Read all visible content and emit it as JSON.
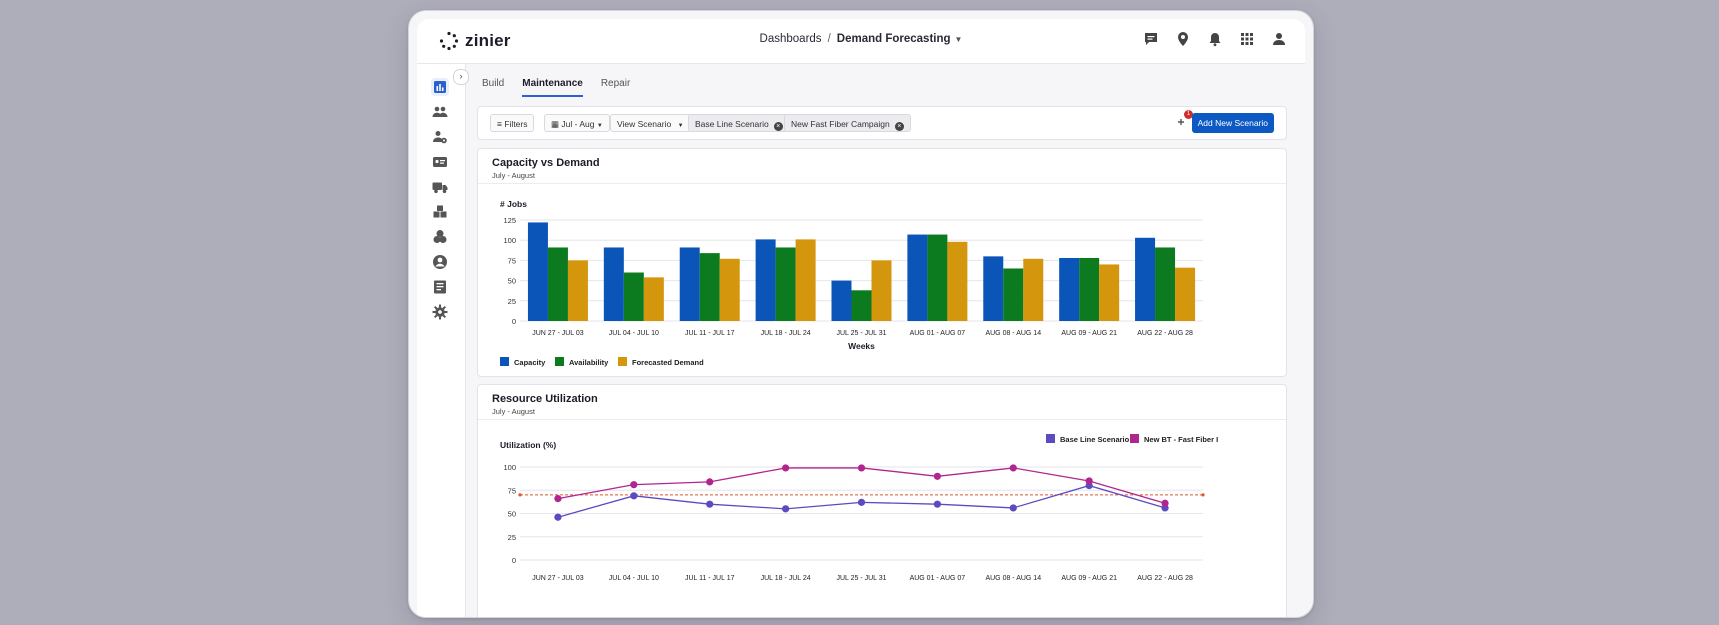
{
  "app": {
    "logo_text": "zinier"
  },
  "breadcrumb": {
    "parent": "Dashboards",
    "separator": "/",
    "current": "Demand Forecasting"
  },
  "tabs": [
    {
      "label": "Build"
    },
    {
      "label": "Maintenance"
    },
    {
      "label": "Repair"
    }
  ],
  "filters": {
    "filters_label": "Filters",
    "date_range": "Jul - Aug",
    "view_scenario": "View Scenario",
    "scenarios": [
      "Base Line Scenario",
      "New Fast Fiber Campaign"
    ],
    "notification_count": "1",
    "add_button": "Add New Scenario"
  },
  "capacity_card": {
    "title": "Capacity vs Demand",
    "subtitle": "July - August"
  },
  "utilization_card": {
    "title": "Resource Utilization",
    "subtitle": "July - August"
  },
  "colors": {
    "capacity": "#0b55b8",
    "availability": "#0c7a1e",
    "forecast": "#d4960c",
    "baseline": "#5a4cc0",
    "newbt": "#b1268e",
    "threshold": "#e0542e"
  },
  "chart_data": [
    {
      "type": "bar",
      "ylabel": "# Jobs",
      "xlabel": "Weeks",
      "ylim": [
        0,
        125
      ],
      "yticks": [
        0,
        25,
        50,
        75,
        100,
        125
      ],
      "categories": [
        "JUN 27 - JUL 03",
        "JUL 04 - JUL 10",
        "JUL 11 - JUL 17",
        "JUL 18 - JUL 24",
        "JUL 25 - JUL 31",
        "AUG 01 - AUG 07",
        "AUG 08 - AUG 14",
        "AUG 09 - AUG 21",
        "AUG 22 - AUG 28"
      ],
      "series": [
        {
          "name": "Capacity",
          "values": [
            122,
            91,
            91,
            101,
            50,
            107,
            80,
            78,
            103
          ]
        },
        {
          "name": "Availability",
          "values": [
            91,
            60,
            84,
            91,
            38,
            107,
            65,
            78,
            91
          ]
        },
        {
          "name": "Forecasted Demand",
          "values": [
            75,
            54,
            77,
            101,
            75,
            98,
            77,
            70,
            66
          ]
        }
      ],
      "legend": "bottom-left"
    },
    {
      "type": "line",
      "ylabel": "Utilization (%)",
      "ylim": [
        0,
        100
      ],
      "yticks": [
        0,
        25,
        50,
        75,
        100
      ],
      "threshold": 70,
      "categories": [
        "JUN 27 - JUL 03",
        "JUL 04 - JUL 10",
        "JUL 11 - JUL 17",
        "JUL 18 - JUL 24",
        "JUL 25 - JUL 31",
        "AUG 01 - AUG 07",
        "AUG 08 - AUG 14",
        "AUG 09 - AUG 21",
        "AUG 22 - AUG 28"
      ],
      "series": [
        {
          "name": "Base Line Scenario",
          "values": [
            46,
            69,
            60,
            55,
            62,
            60,
            56,
            80,
            56
          ]
        },
        {
          "name": "New BT - Fast Fiber Installation",
          "values": [
            66,
            81,
            84,
            99,
            99,
            90,
            99,
            85,
            61
          ]
        }
      ],
      "legend": "top-right"
    }
  ]
}
